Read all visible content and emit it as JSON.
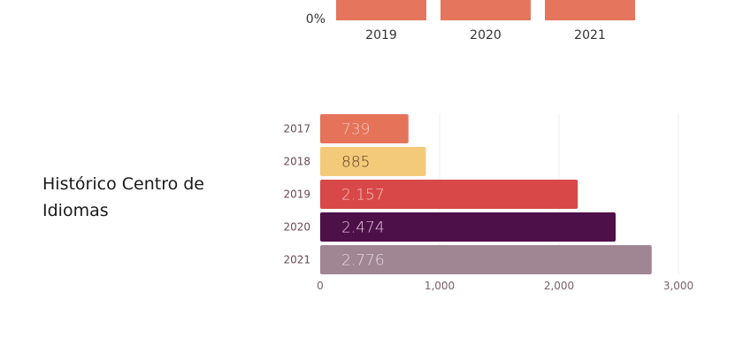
{
  "side_title": "Histórico Centro de Idiomas",
  "chart_data": [
    {
      "type": "bar",
      "orientation": "vertical",
      "partial": true,
      "categories": [
        "2019",
        "2020",
        "2021"
      ],
      "y_tick_labels": [
        "0%"
      ],
      "bar_color": "#E5765D"
    },
    {
      "type": "bar",
      "orientation": "horizontal",
      "title": "Histórico Centro de Idiomas",
      "categories": [
        "2017",
        "2018",
        "2019",
        "2020",
        "2021"
      ],
      "values": [
        739,
        885,
        2157,
        2474,
        2776
      ],
      "data_labels": [
        "739",
        "885",
        "2.157",
        "2.474",
        "2.776"
      ],
      "colors": [
        "#E5735A",
        "#F3CA79",
        "#D94848",
        "#4E1048",
        "#A08592"
      ],
      "label_colors": [
        "#F6C9BC",
        "#5A3A20",
        "#F5C8C4",
        "#E6C9E2",
        "#E9DDE4"
      ],
      "xlim": [
        0,
        3000
      ],
      "x_ticks": [
        0,
        1000,
        2000,
        3000
      ],
      "x_tick_labels": [
        "0",
        "1,000",
        "2,000",
        "3,000"
      ],
      "grid": true,
      "xlabel": "",
      "ylabel": ""
    }
  ]
}
